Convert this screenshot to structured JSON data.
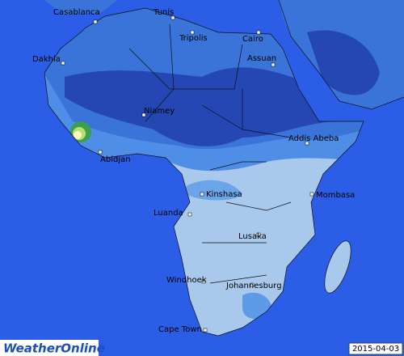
{
  "map": {
    "cities": [
      "Casablanca",
      "Tunis",
      "Tripolis",
      "Cairo",
      "Dakhla",
      "Assuan",
      "Niamey",
      "Addis Abeba",
      "Abidjan",
      "Kinshasa",
      "Mombasa",
      "Luanda",
      "Lusaka",
      "Windhoek",
      "Johannesburg",
      "Cape Town"
    ],
    "date": "2015-04-03",
    "logo": "WeatherOnline"
  }
}
